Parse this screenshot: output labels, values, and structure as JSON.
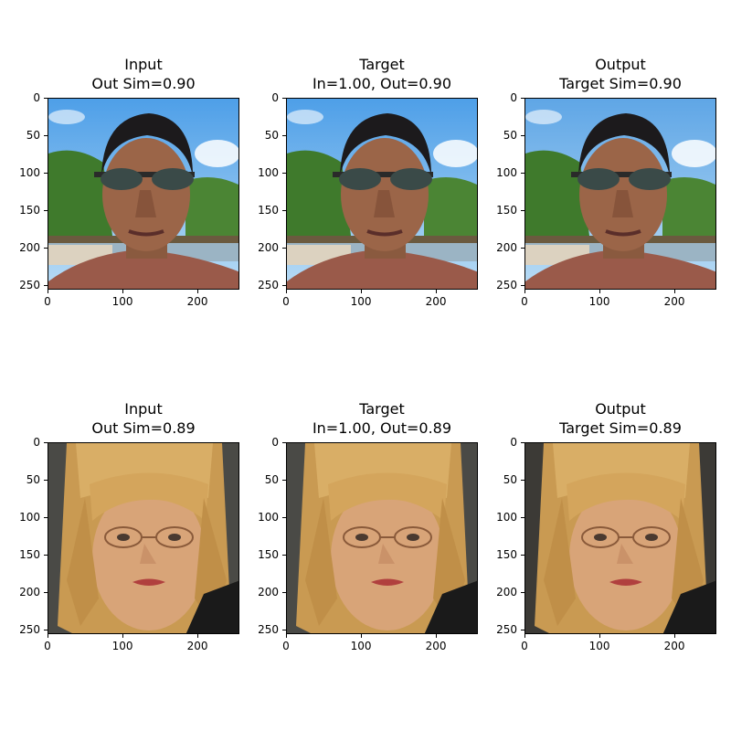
{
  "panels": [
    {
      "title_line1": "Input",
      "title_line2": "Out Sim=0.90",
      "subject": "man-sunglasses-beach-photo",
      "variant": "input"
    },
    {
      "title_line1": "Target",
      "title_line2": "In=1.00, Out=0.90",
      "subject": "man-sunglasses-beach-photo",
      "variant": "target"
    },
    {
      "title_line1": "Output",
      "title_line2": "Target Sim=0.90",
      "subject": "man-sunglasses-beach-photo",
      "variant": "output"
    },
    {
      "title_line1": "Input",
      "title_line2": "Out Sim=0.89",
      "subject": "woman-blonde-glasses-photo",
      "variant": "input"
    },
    {
      "title_line1": "Target",
      "title_line2": "In=1.00, Out=0.89",
      "subject": "woman-blonde-glasses-photo",
      "variant": "target"
    },
    {
      "title_line1": "Output",
      "title_line2": "Target Sim=0.89",
      "subject": "woman-blonde-glasses-photo",
      "variant": "output"
    }
  ],
  "axes": {
    "y_ticks": [
      "0",
      "50",
      "100",
      "150",
      "200",
      "250"
    ],
    "x_ticks": [
      "0",
      "100",
      "200"
    ]
  }
}
